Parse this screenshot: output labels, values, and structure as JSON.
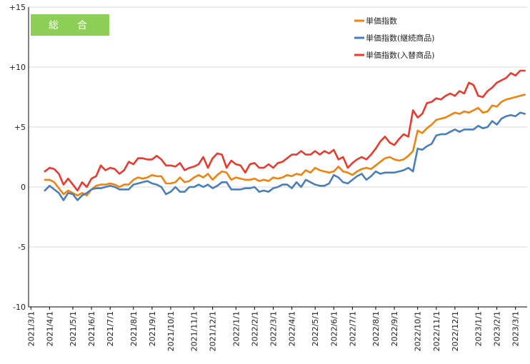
{
  "chart_data": {
    "type": "line",
    "title": "総　合",
    "badge_color": "#8dcf56",
    "ylim": [
      -10,
      15
    ],
    "yticks": [
      {
        "value": 15,
        "label": "+15"
      },
      {
        "value": 10,
        "label": "+10"
      },
      {
        "value": 5,
        "label": "+5"
      },
      {
        "value": 0,
        "label": "0"
      },
      {
        "value": -5,
        "label": "-5"
      },
      {
        "value": -10,
        "label": "-10"
      }
    ],
    "grid": {
      "horizontal": true,
      "vertical": false
    },
    "legend_position": "top-right",
    "xlabels": [
      "2021/3/1",
      "2021/4/1",
      "2021/5/1",
      "2021/6/1",
      "2021/7/1",
      "2021/8/1",
      "2021/9/1",
      "2021/10/1",
      "2021/11/1",
      "2021/12/1",
      "2022/1/1",
      "2022/2/1",
      "2022/3/1",
      "2022/4/1",
      "2022/5/1",
      "2022/6/1",
      "2022/7/1",
      "2022/8/1",
      "2022/9/1",
      "2022/10/1",
      "2022/11/1",
      "2022/12/1",
      "2023/1/1",
      "2023/2/1",
      "2023/3/1"
    ],
    "xlabel_week": [
      0,
      4,
      9,
      13,
      17,
      22,
      26,
      30,
      35,
      39,
      44,
      48,
      52,
      56,
      61,
      65,
      69,
      74,
      78,
      83,
      87,
      91,
      96,
      100,
      104
    ],
    "week_count": 107,
    "series": [
      {
        "name": "単価指数",
        "color": "#f0820f",
        "points": [
          [
            3,
            0.6
          ],
          [
            4,
            0.6
          ],
          [
            5,
            0.4
          ],
          [
            6,
            -0.1
          ],
          [
            7,
            -0.6
          ],
          [
            8,
            -0.3
          ],
          [
            9,
            -0.5
          ],
          [
            10,
            -0.7
          ],
          [
            11,
            -0.5
          ],
          [
            12,
            -0.7
          ],
          [
            13,
            -0.2
          ],
          [
            14,
            0.1
          ],
          [
            15,
            0.2
          ],
          [
            16,
            0.2
          ],
          [
            17,
            0.3
          ],
          [
            18,
            0.2
          ],
          [
            19,
            0.0
          ],
          [
            20,
            0.2
          ],
          [
            21,
            0.2
          ],
          [
            22,
            0.6
          ],
          [
            23,
            0.8
          ],
          [
            24,
            0.7
          ],
          [
            25,
            0.8
          ],
          [
            26,
            1.0
          ],
          [
            27,
            0.9
          ],
          [
            28,
            0.9
          ],
          [
            29,
            0.3
          ],
          [
            30,
            0.3
          ],
          [
            31,
            0.4
          ],
          [
            32,
            0.8
          ],
          [
            33,
            0.4
          ],
          [
            34,
            0.5
          ],
          [
            35,
            0.8
          ],
          [
            36,
            1.0
          ],
          [
            37,
            0.8
          ],
          [
            38,
            1.1
          ],
          [
            39,
            0.6
          ],
          [
            40,
            1.0
          ],
          [
            41,
            1.3
          ],
          [
            42,
            1.2
          ],
          [
            43,
            0.6
          ],
          [
            44,
            0.8
          ],
          [
            45,
            0.7
          ],
          [
            46,
            0.6
          ],
          [
            47,
            0.6
          ],
          [
            48,
            0.7
          ],
          [
            49,
            0.5
          ],
          [
            50,
            0.6
          ],
          [
            51,
            0.5
          ],
          [
            52,
            0.8
          ],
          [
            53,
            0.7
          ],
          [
            54,
            0.8
          ],
          [
            55,
            1.0
          ],
          [
            56,
            0.9
          ],
          [
            57,
            1.1
          ],
          [
            58,
            1.0
          ],
          [
            59,
            1.4
          ],
          [
            60,
            1.2
          ],
          [
            61,
            1.6
          ],
          [
            62,
            1.4
          ],
          [
            63,
            1.3
          ],
          [
            64,
            1.2
          ],
          [
            65,
            1.3
          ],
          [
            66,
            1.7
          ],
          [
            67,
            1.3
          ],
          [
            68,
            1.2
          ],
          [
            69,
            1.0
          ],
          [
            70,
            1.3
          ],
          [
            71,
            1.5
          ],
          [
            72,
            1.6
          ],
          [
            73,
            1.5
          ],
          [
            74,
            1.8
          ],
          [
            75,
            2.1
          ],
          [
            76,
            2.4
          ],
          [
            77,
            2.5
          ],
          [
            78,
            2.3
          ],
          [
            79,
            2.2
          ],
          [
            80,
            2.3
          ],
          [
            81,
            2.6
          ],
          [
            82,
            3.0
          ],
          [
            83,
            4.7
          ],
          [
            84,
            4.5
          ],
          [
            85,
            4.9
          ],
          [
            86,
            5.2
          ],
          [
            87,
            5.6
          ],
          [
            88,
            5.7
          ],
          [
            89,
            5.8
          ],
          [
            90,
            6.0
          ],
          [
            91,
            6.2
          ],
          [
            92,
            6.1
          ],
          [
            93,
            6.3
          ],
          [
            94,
            6.2
          ],
          [
            95,
            6.4
          ],
          [
            96,
            6.6
          ],
          [
            97,
            6.2
          ],
          [
            98,
            6.3
          ],
          [
            99,
            6.8
          ],
          [
            100,
            6.7
          ],
          [
            101,
            7.1
          ],
          [
            102,
            7.3
          ],
          [
            103,
            7.4
          ],
          [
            104,
            7.5
          ],
          [
            105,
            7.6
          ],
          [
            106,
            7.7
          ]
        ]
      },
      {
        "name": "単価指数(継続商品)",
        "color": "#4a7ebb",
        "points": [
          [
            3,
            -0.3
          ],
          [
            4,
            0.1
          ],
          [
            5,
            -0.2
          ],
          [
            6,
            -0.5
          ],
          [
            7,
            -1.1
          ],
          [
            8,
            -0.5
          ],
          [
            9,
            -0.6
          ],
          [
            10,
            -1.1
          ],
          [
            11,
            -0.7
          ],
          [
            12,
            -0.5
          ],
          [
            13,
            -0.2
          ],
          [
            14,
            -0.1
          ],
          [
            15,
            -0.1
          ],
          [
            16,
            0.0
          ],
          [
            17,
            0.1
          ],
          [
            18,
            0.0
          ],
          [
            19,
            -0.2
          ],
          [
            20,
            -0.2
          ],
          [
            21,
            -0.2
          ],
          [
            22,
            0.2
          ],
          [
            23,
            0.3
          ],
          [
            24,
            0.4
          ],
          [
            25,
            0.5
          ],
          [
            26,
            0.3
          ],
          [
            27,
            0.2
          ],
          [
            28,
            0.0
          ],
          [
            29,
            -0.6
          ],
          [
            30,
            -0.4
          ],
          [
            31,
            0.0
          ],
          [
            32,
            -0.4
          ],
          [
            33,
            -0.4
          ],
          [
            34,
            0.0
          ],
          [
            35,
            0.0
          ],
          [
            36,
            0.2
          ],
          [
            37,
            0.0
          ],
          [
            38,
            0.2
          ],
          [
            39,
            -0.1
          ],
          [
            40,
            0.1
          ],
          [
            41,
            0.4
          ],
          [
            42,
            0.4
          ],
          [
            43,
            -0.2
          ],
          [
            44,
            -0.2
          ],
          [
            45,
            -0.2
          ],
          [
            46,
            -0.1
          ],
          [
            47,
            -0.1
          ],
          [
            48,
            0.0
          ],
          [
            49,
            -0.4
          ],
          [
            50,
            -0.3
          ],
          [
            51,
            -0.4
          ],
          [
            52,
            -0.1
          ],
          [
            53,
            0.0
          ],
          [
            54,
            0.2
          ],
          [
            55,
            0.2
          ],
          [
            56,
            -0.1
          ],
          [
            57,
            0.4
          ],
          [
            58,
            0.0
          ],
          [
            59,
            0.6
          ],
          [
            60,
            0.4
          ],
          [
            61,
            0.2
          ],
          [
            62,
            0.1
          ],
          [
            63,
            0.1
          ],
          [
            64,
            0.3
          ],
          [
            65,
            1.0
          ],
          [
            66,
            0.8
          ],
          [
            67,
            0.4
          ],
          [
            68,
            0.3
          ],
          [
            69,
            0.6
          ],
          [
            70,
            0.9
          ],
          [
            71,
            1.1
          ],
          [
            72,
            0.6
          ],
          [
            73,
            0.9
          ],
          [
            74,
            1.3
          ],
          [
            75,
            1.1
          ],
          [
            76,
            1.2
          ],
          [
            77,
            1.2
          ],
          [
            78,
            1.2
          ],
          [
            79,
            1.3
          ],
          [
            80,
            1.4
          ],
          [
            81,
            1.6
          ],
          [
            82,
            1.3
          ],
          [
            83,
            3.2
          ],
          [
            84,
            3.1
          ],
          [
            85,
            3.4
          ],
          [
            86,
            3.6
          ],
          [
            87,
            4.3
          ],
          [
            88,
            4.4
          ],
          [
            89,
            4.4
          ],
          [
            90,
            4.6
          ],
          [
            91,
            4.8
          ],
          [
            92,
            4.6
          ],
          [
            93,
            4.8
          ],
          [
            94,
            4.8
          ],
          [
            95,
            4.8
          ],
          [
            96,
            5.1
          ],
          [
            97,
            4.9
          ],
          [
            98,
            5.0
          ],
          [
            99,
            5.5
          ],
          [
            100,
            5.2
          ],
          [
            101,
            5.7
          ],
          [
            102,
            5.9
          ],
          [
            103,
            6.0
          ],
          [
            104,
            5.9
          ],
          [
            105,
            6.2
          ],
          [
            106,
            6.1
          ]
        ]
      },
      {
        "name": "単価指数(入替商品)",
        "color": "#e83a2e",
        "points": [
          [
            3,
            1.3
          ],
          [
            4,
            1.6
          ],
          [
            5,
            1.5
          ],
          [
            6,
            1.1
          ],
          [
            7,
            0.2
          ],
          [
            8,
            0.7
          ],
          [
            9,
            0.2
          ],
          [
            10,
            -0.3
          ],
          [
            11,
            0.4
          ],
          [
            12,
            0.0
          ],
          [
            13,
            0.7
          ],
          [
            14,
            0.9
          ],
          [
            15,
            1.8
          ],
          [
            16,
            1.4
          ],
          [
            17,
            1.6
          ],
          [
            18,
            1.5
          ],
          [
            19,
            1.1
          ],
          [
            20,
            1.4
          ],
          [
            21,
            2.1
          ],
          [
            22,
            1.9
          ],
          [
            23,
            2.4
          ],
          [
            24,
            2.4
          ],
          [
            25,
            2.3
          ],
          [
            26,
            2.3
          ],
          [
            27,
            2.6
          ],
          [
            28,
            2.3
          ],
          [
            29,
            1.8
          ],
          [
            30,
            1.8
          ],
          [
            31,
            1.7
          ],
          [
            32,
            2.0
          ],
          [
            33,
            1.4
          ],
          [
            34,
            1.6
          ],
          [
            35,
            1.7
          ],
          [
            36,
            1.9
          ],
          [
            37,
            2.5
          ],
          [
            38,
            1.6
          ],
          [
            39,
            2.4
          ],
          [
            40,
            2.8
          ],
          [
            41,
            2.7
          ],
          [
            42,
            1.6
          ],
          [
            43,
            2.2
          ],
          [
            44,
            1.9
          ],
          [
            45,
            1.8
          ],
          [
            46,
            1.2
          ],
          [
            47,
            1.9
          ],
          [
            48,
            2.0
          ],
          [
            49,
            1.6
          ],
          [
            50,
            1.6
          ],
          [
            51,
            1.9
          ],
          [
            52,
            1.6
          ],
          [
            53,
            2.0
          ],
          [
            54,
            2.1
          ],
          [
            55,
            2.4
          ],
          [
            56,
            2.7
          ],
          [
            57,
            2.7
          ],
          [
            58,
            3.0
          ],
          [
            59,
            2.7
          ],
          [
            60,
            2.7
          ],
          [
            61,
            3.0
          ],
          [
            62,
            2.7
          ],
          [
            63,
            3.0
          ],
          [
            64,
            2.8
          ],
          [
            65,
            3.1
          ],
          [
            66,
            2.3
          ],
          [
            67,
            2.5
          ],
          [
            68,
            1.6
          ],
          [
            69,
            2.0
          ],
          [
            70,
            2.3
          ],
          [
            71,
            2.5
          ],
          [
            72,
            2.3
          ],
          [
            73,
            2.7
          ],
          [
            74,
            3.2
          ],
          [
            75,
            3.8
          ],
          [
            76,
            4.2
          ],
          [
            77,
            3.7
          ],
          [
            78,
            3.5
          ],
          [
            79,
            4.0
          ],
          [
            80,
            4.4
          ],
          [
            81,
            4.2
          ],
          [
            82,
            6.4
          ],
          [
            83,
            5.8
          ],
          [
            84,
            6.1
          ],
          [
            85,
            7.0
          ],
          [
            86,
            7.1
          ],
          [
            87,
            7.4
          ],
          [
            88,
            7.3
          ],
          [
            89,
            7.6
          ],
          [
            90,
            7.8
          ],
          [
            91,
            7.6
          ],
          [
            92,
            8.0
          ],
          [
            93,
            7.8
          ],
          [
            94,
            8.7
          ],
          [
            95,
            8.5
          ],
          [
            96,
            7.6
          ],
          [
            97,
            7.5
          ],
          [
            98,
            8.0
          ],
          [
            99,
            8.3
          ],
          [
            100,
            8.7
          ],
          [
            101,
            8.9
          ],
          [
            102,
            9.1
          ],
          [
            103,
            9.5
          ],
          [
            104,
            9.3
          ],
          [
            105,
            9.7
          ],
          [
            106,
            9.7
          ]
        ]
      }
    ]
  }
}
